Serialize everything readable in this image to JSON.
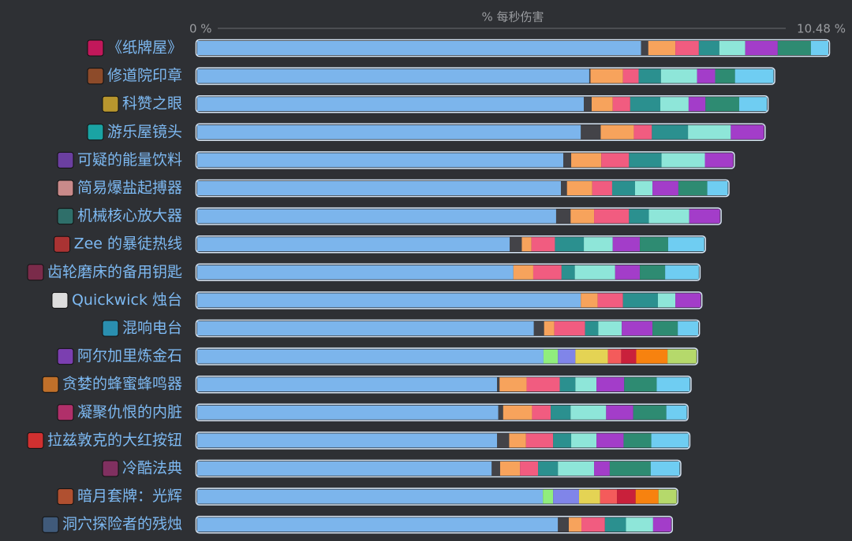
{
  "chart_data": {
    "type": "stacked-bar-horizontal",
    "xlabel": "% 每秒伤害",
    "xlim": [
      0,
      10.48
    ],
    "xticks": [
      {
        "value": 0,
        "label": "0 %"
      },
      {
        "value": 10.48,
        "label": "10.48 %"
      }
    ],
    "categories": [
      "《纸牌屋》",
      "修道院印章",
      "科赞之眼",
      "游乐屋镜头",
      "可疑的能量饮料",
      "简易爆盐起搏器",
      "机械核心放大器",
      "Zee 的暴徒热线",
      "齿轮磨床的备用钥匙",
      "Quickwick 烛台",
      "混响电台",
      "阿尔加里炼金石",
      "贪婪的蜂蜜蜂鸣器",
      "凝聚仇恨的内脏",
      "拉兹敦克的大红按钮",
      "冷酷法典",
      "暗月套牌：光辉",
      "洞穴探险者的残烛"
    ],
    "series": [
      {
        "color": "#7cb5ec",
        "values": [
          7.37,
          6.51,
          6.42,
          6.37,
          6.08,
          6.04,
          5.96,
          5.19,
          5.25,
          6.37,
          5.59,
          5.75,
          4.98,
          5.0,
          4.98,
          4.89,
          5.74,
          5.99
        ]
      },
      {
        "color": "#434348",
        "values": [
          0.12,
          0.02,
          0.13,
          0.33,
          0.13,
          0.1,
          0.24,
          0.2,
          0,
          0,
          0.17,
          0,
          0.04,
          0.08,
          0.2,
          0.14,
          0,
          0.18
        ]
      },
      {
        "color": "#f7a35c",
        "values": [
          0.45,
          0.54,
          0.35,
          0.55,
          0.5,
          0.42,
          0.39,
          0.16,
          0.33,
          0.28,
          0.17,
          0,
          0.45,
          0.48,
          0.28,
          0.33,
          0,
          0.21
        ]
      },
      {
        "color": "#f15c80",
        "values": [
          0.39,
          0.26,
          0.29,
          0.3,
          0.46,
          0.33,
          0.58,
          0.39,
          0.47,
          0.42,
          0.51,
          0,
          0.55,
          0.31,
          0.45,
          0.3,
          0,
          0.39
        ]
      },
      {
        "color": "#2b908f",
        "values": [
          0.34,
          0.37,
          0.5,
          0.6,
          0.54,
          0.38,
          0.33,
          0.48,
          0.22,
          0.58,
          0.22,
          0,
          0.26,
          0.33,
          0.3,
          0.33,
          0,
          0.35
        ]
      },
      {
        "color": "#8ee6d9",
        "values": [
          0.43,
          0.6,
          0.47,
          0.71,
          0.72,
          0.29,
          0.67,
          0.48,
          0.67,
          0.29,
          0.39,
          0,
          0.35,
          0.59,
          0.42,
          0.6,
          0,
          0.45
        ]
      },
      {
        "color": "#a33dc9",
        "values": [
          0.54,
          0.3,
          0.28,
          0.55,
          0.47,
          0.43,
          0.51,
          0.45,
          0.41,
          0.42,
          0.51,
          0,
          0.46,
          0.45,
          0.45,
          0.26,
          0,
          0.3
        ]
      },
      {
        "color": "#2e8b72",
        "values": [
          0.55,
          0.33,
          0.56,
          0,
          0,
          0.48,
          0,
          0.47,
          0.42,
          0,
          0.42,
          0,
          0.54,
          0.55,
          0.46,
          0.68,
          0,
          0
        ]
      },
      {
        "color": "#6fcdf2",
        "values": [
          0.29,
          0.64,
          0.46,
          0,
          0,
          0.34,
          0,
          0.6,
          0.56,
          0,
          0.34,
          0,
          0.55,
          0.34,
          0.62,
          0.48,
          0,
          0
        ]
      },
      {
        "color": "#90ed7d",
        "values": [
          0,
          0,
          0,
          0,
          0,
          0,
          0,
          0,
          0,
          0,
          0,
          0.24,
          0,
          0,
          0,
          0,
          0.17,
          0
        ]
      },
      {
        "color": "#8085e9",
        "values": [
          0,
          0,
          0,
          0,
          0,
          0,
          0,
          0,
          0,
          0,
          0,
          0.29,
          0,
          0,
          0,
          0,
          0.43,
          0
        ]
      },
      {
        "color": "#e4d354",
        "values": [
          0,
          0,
          0,
          0,
          0,
          0,
          0,
          0,
          0,
          0,
          0,
          0.54,
          0,
          0,
          0,
          0,
          0.35,
          0
        ]
      },
      {
        "color": "#f45b5b",
        "values": [
          0,
          0,
          0,
          0,
          0,
          0,
          0,
          0,
          0,
          0,
          0,
          0.22,
          0,
          0,
          0,
          0,
          0.28,
          0
        ]
      },
      {
        "color": "#c9203b",
        "values": [
          0,
          0,
          0,
          0,
          0,
          0,
          0,
          0,
          0,
          0,
          0,
          0.25,
          0,
          0,
          0,
          0,
          0.31,
          0
        ]
      },
      {
        "color": "#f7820f",
        "values": [
          0,
          0,
          0,
          0,
          0,
          0,
          0,
          0,
          0,
          0,
          0,
          0.52,
          0,
          0,
          0,
          0,
          0.38,
          0
        ]
      },
      {
        "color": "#b5d96b",
        "values": [
          0,
          0,
          0,
          0,
          0,
          0,
          0,
          0,
          0,
          0,
          0,
          0.48,
          0,
          0,
          0,
          0,
          0.3,
          0
        ]
      }
    ]
  }
}
